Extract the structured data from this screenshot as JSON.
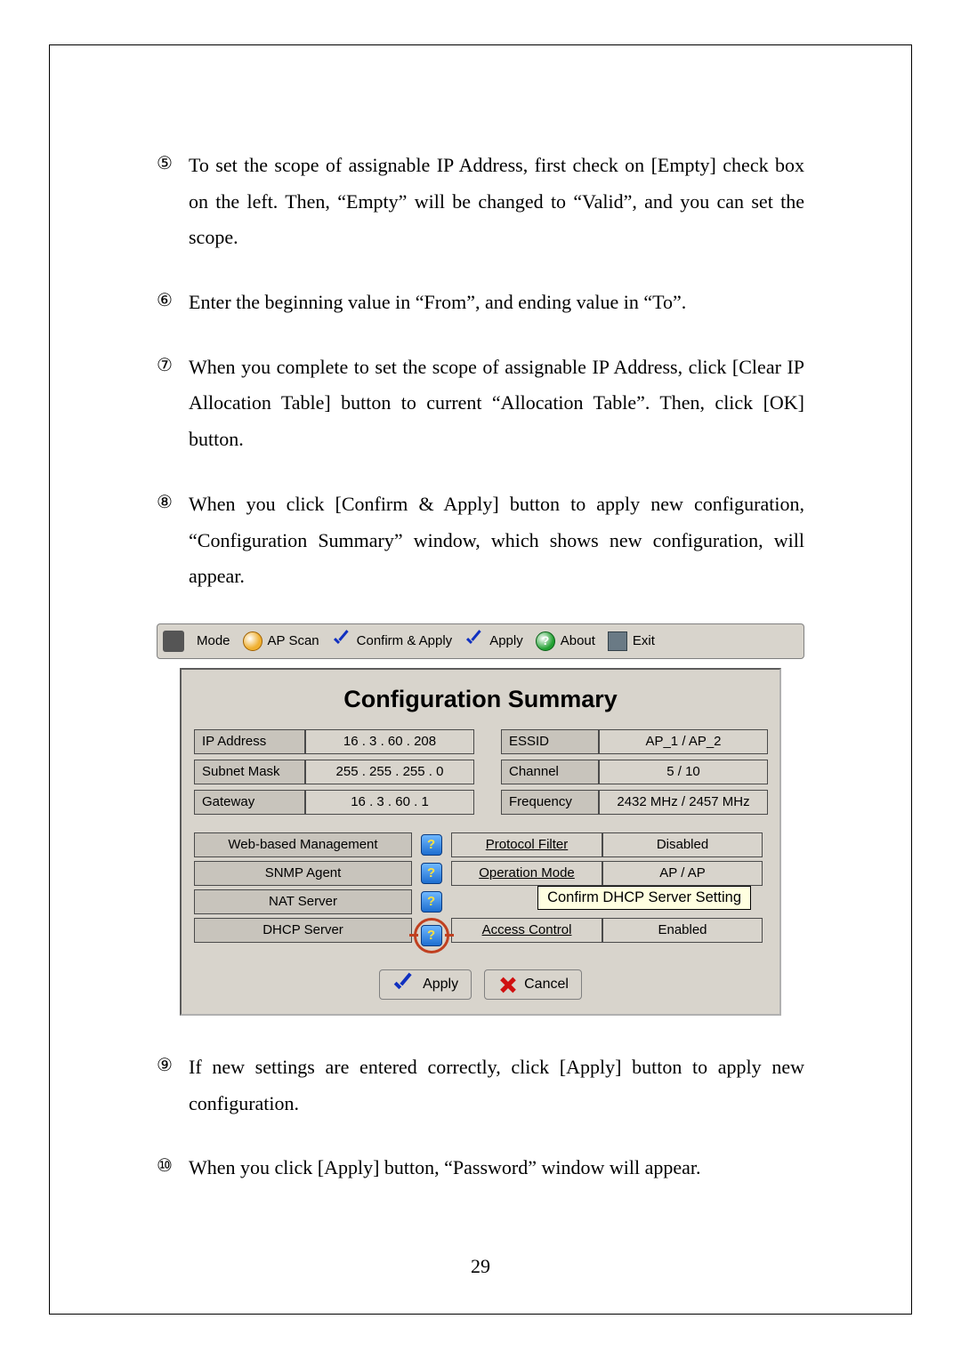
{
  "steps": [
    {
      "n": "⑤",
      "t": "To set the scope of assignable IP Address, first check on [Empty] check box on the left. Then, “Empty” will be changed to “Valid”, and you can set the scope."
    },
    {
      "n": "⑥",
      "t": "Enter the beginning value in “From”, and ending value in “To”."
    },
    {
      "n": "⑦",
      "t": "When you complete to set the scope of assignable IP Address, click [Clear IP Allocation Table] button to current “Allocation Table”. Then, click [OK] button."
    },
    {
      "n": "⑧",
      "t": "When you click [Confirm & Apply] button to apply new configuration, “Configuration Summary” window, which shows new configuration, will appear."
    }
  ],
  "steps2": [
    {
      "n": "⑨",
      "t": "If new settings are entered correctly, click [Apply] button to apply new configuration."
    },
    {
      "n": "⑩",
      "t": "When you click [Apply] button, “Password” window will appear."
    }
  ],
  "toolbar": {
    "mode": "Mode",
    "apscan": "AP Scan",
    "confirm": "Confirm & Apply",
    "apply": "Apply",
    "about": "About",
    "exit": "Exit"
  },
  "panel": {
    "title": "Configuration Summary",
    "left_labels": [
      "IP Address",
      "Subnet Mask",
      "Gateway"
    ],
    "left_values": [
      "16  .  3  . 60  . 208",
      "255 . 255 . 255 .   0",
      "16  .  3  . 60  .   1"
    ],
    "right_labels": [
      "ESSID",
      "Channel",
      "Frequency"
    ],
    "right_values": [
      "AP_1 / AP_2",
      "5 / 10",
      "2432 MHz / 2457 MHz"
    ],
    "mid_labels": [
      "Web-based Management",
      "SNMP Agent",
      "NAT Server",
      "DHCP Server"
    ],
    "mid_props": [
      "Protocol Filter",
      "Operation Mode",
      "",
      "Access Control"
    ],
    "mid_vals": [
      "Disabled",
      "AP / AP",
      "",
      "Enabled"
    ],
    "tooltip": "Confirm DHCP Server Setting",
    "btn_apply": "Apply",
    "btn_cancel": "Cancel"
  },
  "pagenum": "29"
}
